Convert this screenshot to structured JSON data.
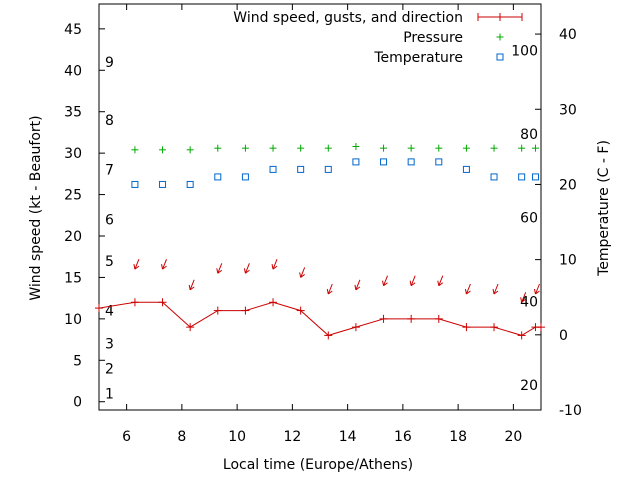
{
  "chart_data": {
    "type": "line",
    "xlabel": "Local time (Europe/Athens)",
    "ylabel_left": "Wind speed (kt - Beaufort)",
    "ylabel_right": "Temperature (C - F)",
    "xlim": [
      5,
      21
    ],
    "xticks": [
      "6",
      "8",
      "10",
      "12",
      "14",
      "16",
      "18",
      "20"
    ],
    "ylim_left": [
      -1,
      48
    ],
    "yticks_left": [
      "0",
      "5",
      "10",
      "15",
      "20",
      "25",
      "30",
      "35",
      "40",
      "45"
    ],
    "ylim_right": [
      -10,
      44
    ],
    "yticks_right": [
      "-10",
      "0",
      "10",
      "20",
      "30",
      "40"
    ],
    "beaufort_labels": [
      {
        "label": "1",
        "wind": 1
      },
      {
        "label": "2",
        "wind": 4
      },
      {
        "label": "3",
        "wind": 7
      },
      {
        "label": "4",
        "wind": 11
      },
      {
        "label": "5",
        "wind": 17
      },
      {
        "label": "6",
        "wind": 22
      },
      {
        "label": "7",
        "wind": 28
      },
      {
        "label": "8",
        "wind": 34
      },
      {
        "label": "9",
        "wind": 41
      }
    ],
    "fahrenheit_labels": [
      {
        "label": "20",
        "temp": -6.7
      },
      {
        "label": "40",
        "temp": 4.4
      },
      {
        "label": "60",
        "temp": 15.6
      },
      {
        "label": "80",
        "temp": 26.7
      },
      {
        "label": "100",
        "temp": 37.8
      }
    ],
    "legend_position": "top-right",
    "series": [
      {
        "name": "Wind speed, gusts, and direction",
        "axis": "left",
        "color": "#cc0000",
        "x": [
          5,
          6.3,
          7.3,
          8.3,
          9.3,
          10.3,
          11.3,
          12.3,
          13.3,
          14.3,
          15.3,
          16.3,
          17.3,
          18.3,
          19.3,
          20.3,
          20.8,
          21
        ],
        "y": [
          11.3,
          12,
          12,
          9,
          11,
          11,
          12,
          11,
          8,
          9,
          10,
          10,
          10,
          9,
          9,
          8,
          9,
          9
        ],
        "arrow_x": [
          6.3,
          7.3,
          8.3,
          9.3,
          10.3,
          11.3,
          12.3,
          13.3,
          14.3,
          15.3,
          16.3,
          17.3,
          18.3,
          19.3,
          20.3,
          20.8
        ],
        "arrow_y": [
          16,
          16,
          13.5,
          15.5,
          15.5,
          16,
          15,
          13,
          13.5,
          14,
          14,
          14,
          13,
          13,
          12,
          13
        ]
      },
      {
        "name": "Pressure",
        "axis": "left",
        "color": "#00aa00",
        "marker": "plus",
        "x": [
          6.3,
          7.3,
          8.3,
          9.3,
          10.3,
          11.3,
          12.3,
          13.3,
          14.3,
          15.3,
          16.3,
          17.3,
          18.3,
          19.3,
          20.3,
          20.8
        ],
        "y": [
          30.4,
          30.4,
          30.4,
          30.6,
          30.6,
          30.6,
          30.6,
          30.6,
          30.8,
          30.6,
          30.6,
          30.6,
          30.6,
          30.6,
          30.6,
          30.6
        ]
      },
      {
        "name": "Temperature",
        "axis": "right",
        "color": "#0066cc",
        "marker": "square",
        "x": [
          6.3,
          7.3,
          8.3,
          9.3,
          10.3,
          11.3,
          12.3,
          13.3,
          14.3,
          15.3,
          16.3,
          17.3,
          18.3,
          19.3,
          20.3,
          20.8
        ],
        "y": [
          20,
          20,
          20,
          21,
          21,
          22,
          22,
          22,
          23,
          23,
          23,
          23,
          22,
          21,
          21,
          21
        ]
      }
    ]
  }
}
